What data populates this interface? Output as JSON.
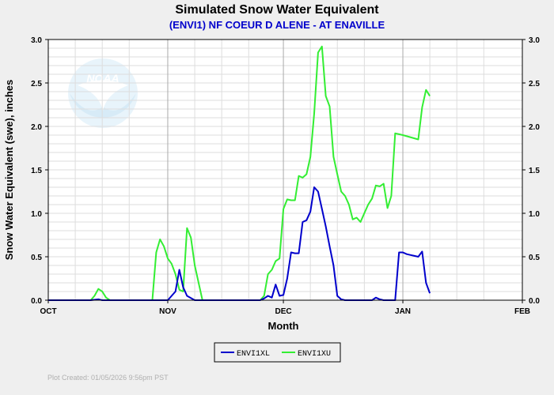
{
  "chart_data": {
    "type": "line",
    "title": "Simulated Snow Water Equivalent",
    "subtitle": "(ENVI1) NF COEUR D ALENE - AT ENAVILLE",
    "xlabel": "Month",
    "ylabel": "Snow Water Equivalent (swe),  inches",
    "x_ticks": [
      "OCT",
      "NOV",
      "DEC",
      "JAN",
      "FEB"
    ],
    "y_ticks": [
      "0.0",
      "0.5",
      "1.0",
      "1.5",
      "2.0",
      "2.5",
      "3.0"
    ],
    "ylim": [
      0,
      3.0
    ],
    "xlim": [
      "2025-10-01",
      "2026-02-01"
    ],
    "grid": true,
    "legend_position": "bottom-center",
    "footer": "Plot Created: 01/05/2026 9:56pm PST",
    "logo_text": "NOAA",
    "series": [
      {
        "name": "ENVI1XL",
        "color": "#0000cc",
        "x": [
          "2025-10-01",
          "2025-10-12",
          "2025-10-14",
          "2025-10-15",
          "2025-10-16",
          "2025-11-01",
          "2025-11-03",
          "2025-11-04",
          "2025-11-05",
          "2025-11-06",
          "2025-11-08",
          "2025-11-10",
          "2025-11-25",
          "2025-11-26",
          "2025-11-27",
          "2025-11-28",
          "2025-11-29",
          "2025-11-30",
          "2025-12-01",
          "2025-12-02",
          "2025-12-03",
          "2025-12-04",
          "2025-12-05",
          "2025-12-06",
          "2025-12-07",
          "2025-12-08",
          "2025-12-09",
          "2025-12-10",
          "2025-12-11",
          "2025-12-12",
          "2025-12-13",
          "2025-12-14",
          "2025-12-15",
          "2025-12-16",
          "2025-12-17",
          "2025-12-18",
          "2025-12-20",
          "2025-12-22",
          "2025-12-24",
          "2025-12-25",
          "2025-12-26",
          "2025-12-27",
          "2025-12-28",
          "2025-12-29",
          "2025-12-30",
          "2025-12-31",
          "2026-01-01",
          "2026-01-02",
          "2026-01-03",
          "2026-01-04",
          "2026-01-05",
          "2026-01-06",
          "2026-01-07",
          "2026-01-08"
        ],
        "values": [
          0.0,
          0.0,
          0.01,
          0.0,
          0.0,
          0.0,
          0.1,
          0.35,
          0.15,
          0.05,
          0.0,
          0.0,
          0.0,
          0.02,
          0.05,
          0.03,
          0.18,
          0.05,
          0.06,
          0.25,
          0.55,
          0.54,
          0.54,
          0.9,
          0.92,
          1.02,
          1.3,
          1.25,
          1.05,
          0.85,
          0.62,
          0.4,
          0.05,
          0.01,
          0.0,
          0.0,
          0.0,
          0.0,
          0.0,
          0.03,
          0.01,
          0.0,
          0.0,
          0.0,
          0.0,
          0.55,
          0.55,
          0.53,
          0.52,
          0.51,
          0.5,
          0.56,
          0.2,
          0.08
        ]
      },
      {
        "name": "ENVI1XU",
        "color": "#33ee33",
        "x": [
          "2025-10-01",
          "2025-10-12",
          "2025-10-13",
          "2025-10-14",
          "2025-10-15",
          "2025-10-16",
          "2025-10-17",
          "2025-10-20",
          "2025-10-25",
          "2025-10-28",
          "2025-10-29",
          "2025-10-30",
          "2025-10-31",
          "2025-11-01",
          "2025-11-02",
          "2025-11-03",
          "2025-11-04",
          "2025-11-05",
          "2025-11-06",
          "2025-11-07",
          "2025-11-08",
          "2025-11-10",
          "2025-11-25",
          "2025-11-26",
          "2025-11-27",
          "2025-11-28",
          "2025-11-29",
          "2025-11-30",
          "2025-12-01",
          "2025-12-02",
          "2025-12-03",
          "2025-12-04",
          "2025-12-05",
          "2025-12-06",
          "2025-12-07",
          "2025-12-08",
          "2025-12-09",
          "2025-12-10",
          "2025-12-11",
          "2025-12-12",
          "2025-12-13",
          "2025-12-14",
          "2025-12-15",
          "2025-12-16",
          "2025-12-17",
          "2025-12-18",
          "2025-12-19",
          "2025-12-20",
          "2025-12-21",
          "2025-12-22",
          "2025-12-23",
          "2025-12-24",
          "2025-12-25",
          "2025-12-26",
          "2025-12-27",
          "2025-12-28",
          "2025-12-29",
          "2025-12-30",
          "2025-12-31",
          "2026-01-01",
          "2026-01-05",
          "2026-01-06",
          "2026-01-07",
          "2026-01-08"
        ],
        "values": [
          0.0,
          0.0,
          0.05,
          0.13,
          0.1,
          0.03,
          0.0,
          0.0,
          0.0,
          0.0,
          0.55,
          0.7,
          0.62,
          0.48,
          0.42,
          0.3,
          0.12,
          0.1,
          0.83,
          0.72,
          0.4,
          0.0,
          0.0,
          0.05,
          0.3,
          0.35,
          0.45,
          0.48,
          1.05,
          1.16,
          1.15,
          1.15,
          1.43,
          1.41,
          1.45,
          1.65,
          2.15,
          2.85,
          2.92,
          2.35,
          2.23,
          1.65,
          1.45,
          1.25,
          1.2,
          1.1,
          0.93,
          0.95,
          0.9,
          1.0,
          1.1,
          1.17,
          1.32,
          1.31,
          1.34,
          1.06,
          1.2,
          1.92,
          1.91,
          1.9,
          1.85,
          2.22,
          2.42,
          2.35
        ]
      }
    ]
  }
}
